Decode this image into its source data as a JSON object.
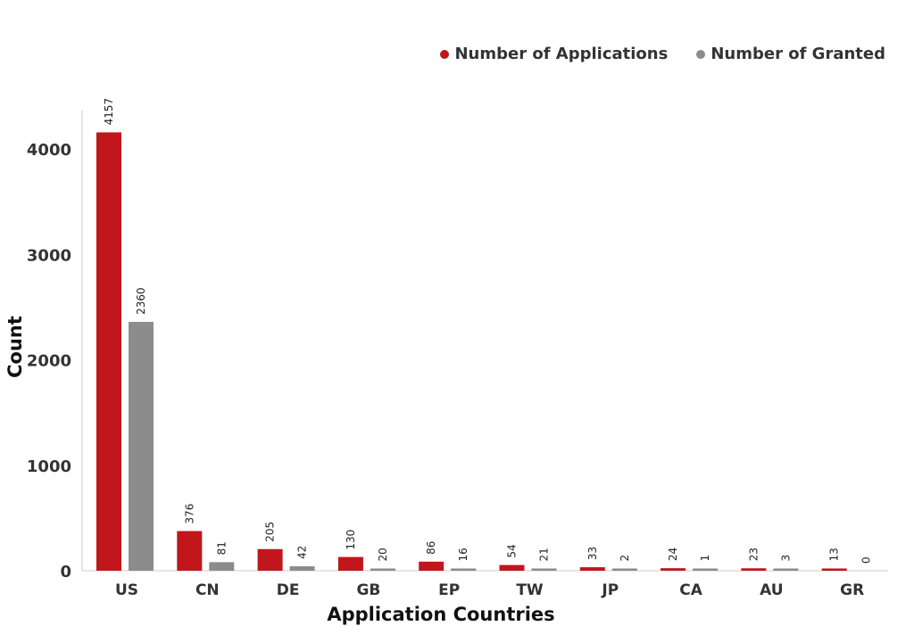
{
  "chart_data": {
    "type": "bar",
    "title": "",
    "xlabel": "Application Countries",
    "ylabel": "Count",
    "categories": [
      "US",
      "CN",
      "DE",
      "GB",
      "EP",
      "TW",
      "JP",
      "CA",
      "AU",
      "GR"
    ],
    "series": [
      {
        "name": "Number of Applications",
        "color": "#c0161c",
        "values": [
          4157,
          376,
          205,
          130,
          86,
          54,
          33,
          24,
          23,
          13
        ]
      },
      {
        "name": "Number of Granted",
        "color": "#8c8c8c",
        "values": [
          2360,
          81,
          42,
          20,
          16,
          21,
          2,
          1,
          3,
          0
        ]
      }
    ],
    "ylim": [
      0,
      4200
    ],
    "yticks": [
      0,
      1000,
      2000,
      3000,
      4000
    ],
    "grid": false,
    "legend_position": "top-right"
  }
}
